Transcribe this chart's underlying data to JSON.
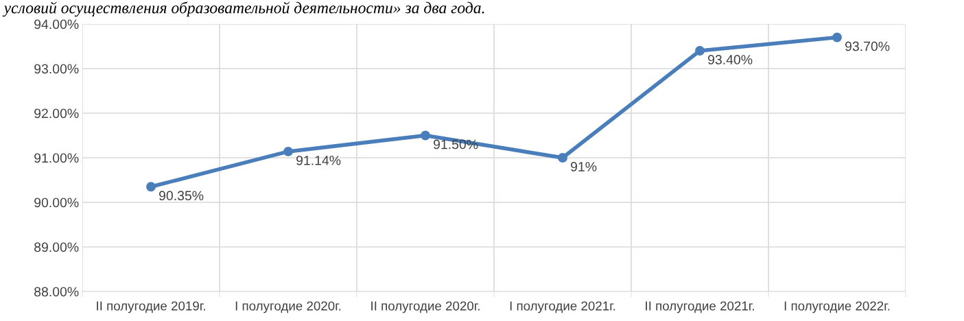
{
  "chart_data": {
    "type": "line",
    "title": "условий осуществления образовательной деятельности» за два года.",
    "categories": [
      "II полугодие 2019г.",
      "I полугодие 2020г.",
      "II полугодие 2020г.",
      "I полугодие 2021г.",
      "II полугодие 2021г.",
      "I полугодие 2022г."
    ],
    "series": [
      {
        "color": "#4a7ebb",
        "values": [
          90.35,
          91.14,
          91.5,
          91,
          93.4,
          93.7
        ],
        "value_labels": [
          "90.35%",
          "91.14%",
          "91.50%",
          "91%",
          "93.40%",
          "93.70%"
        ]
      }
    ],
    "ylim": [
      88,
      94
    ],
    "yticks": [
      {
        "value": 88,
        "label": "88.00%"
      },
      {
        "value": 89,
        "label": "89.00%"
      },
      {
        "value": 90,
        "label": "90.00%"
      },
      {
        "value": 91,
        "label": "91.00%"
      },
      {
        "value": 92,
        "label": "92.00%"
      },
      {
        "value": 93,
        "label": "93.00%"
      },
      {
        "value": 94,
        "label": "94.00%"
      }
    ],
    "grid": true,
    "marker": "circle",
    "line_style": "solid",
    "legend": false
  }
}
